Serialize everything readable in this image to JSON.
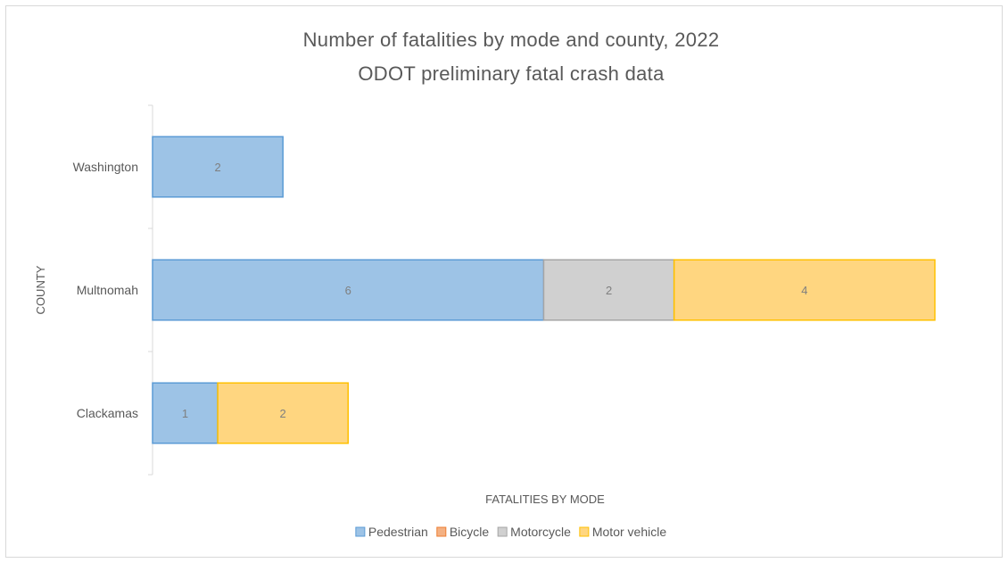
{
  "chart_data": {
    "type": "bar",
    "orientation": "horizontal",
    "stacked": true,
    "title": "Number of fatalities by mode and county, 2022",
    "subtitle": "ODOT preliminary fatal crash data",
    "xlabel": "FATALITIES BY MODE",
    "ylabel": "COUNTY",
    "categories": [
      "Washington",
      "Multnomah",
      "Clackamas"
    ],
    "series": [
      {
        "name": "Pedestrian",
        "values": [
          2,
          6,
          1
        ],
        "color": "#9dc3e6",
        "stroke": "#5b9bd5"
      },
      {
        "name": "Bicycle",
        "values": [
          0,
          0,
          0
        ],
        "color": "#f4b183",
        "stroke": "#ed7d31"
      },
      {
        "name": "Motorcycle",
        "values": [
          0,
          2,
          0
        ],
        "color": "#d0d0d0",
        "stroke": "#a5a5a5"
      },
      {
        "name": "Motor vehicle",
        "values": [
          0,
          4,
          2
        ],
        "color": "#ffd680",
        "stroke": "#ffc000"
      }
    ],
    "xlim": [
      0,
      12
    ],
    "grid": false,
    "legend_position": "bottom"
  }
}
